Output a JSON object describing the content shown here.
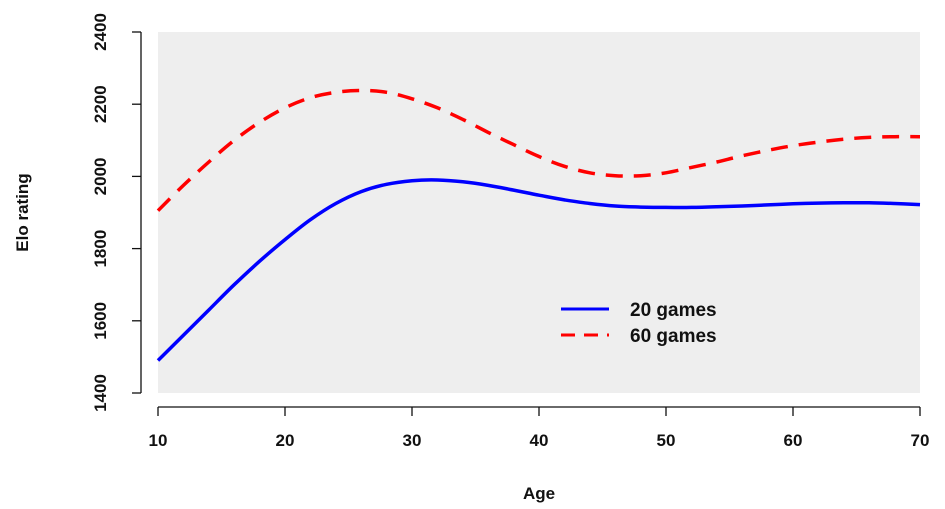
{
  "chart_data": {
    "type": "line",
    "title": "",
    "xlabel": "Age",
    "ylabel": "Elo rating",
    "xlim": [
      10,
      70
    ],
    "ylim": [
      1400,
      2400
    ],
    "x_ticks": [
      10,
      20,
      30,
      40,
      50,
      60,
      70
    ],
    "y_ticks": [
      1400,
      1600,
      1800,
      2000,
      2200,
      2400
    ],
    "grid": false,
    "background": "#eeeeee",
    "legend_position": "center-right",
    "series": [
      {
        "name": "20 games",
        "color": "#0000ff",
        "dash": "solid",
        "x": [
          10,
          12,
          14,
          16,
          18,
          20,
          22,
          24,
          26,
          28,
          30,
          32,
          34,
          36,
          38,
          40,
          42,
          44,
          46,
          48,
          50,
          52,
          54,
          56,
          58,
          60,
          62,
          64,
          66,
          68,
          70
        ],
        "y": [
          1490,
          1560,
          1630,
          1700,
          1765,
          1825,
          1880,
          1925,
          1958,
          1978,
          1988,
          1990,
          1985,
          1975,
          1962,
          1948,
          1935,
          1925,
          1918,
          1915,
          1914,
          1914,
          1916,
          1918,
          1921,
          1924,
          1926,
          1927,
          1927,
          1925,
          1922
        ]
      },
      {
        "name": "60 games",
        "color": "#ff0000",
        "dash": "dashed",
        "x": [
          10,
          12,
          14,
          16,
          18,
          20,
          22,
          24,
          26,
          28,
          30,
          32,
          34,
          36,
          38,
          40,
          42,
          44,
          46,
          48,
          50,
          52,
          54,
          56,
          58,
          60,
          62,
          64,
          66,
          68,
          70
        ],
        "y": [
          1905,
          1975,
          2040,
          2100,
          2150,
          2190,
          2218,
          2233,
          2238,
          2233,
          2215,
          2190,
          2158,
          2122,
          2088,
          2055,
          2028,
          2010,
          2002,
          2002,
          2010,
          2025,
          2040,
          2057,
          2072,
          2085,
          2095,
          2103,
          2108,
          2110,
          2110
        ]
      }
    ]
  }
}
